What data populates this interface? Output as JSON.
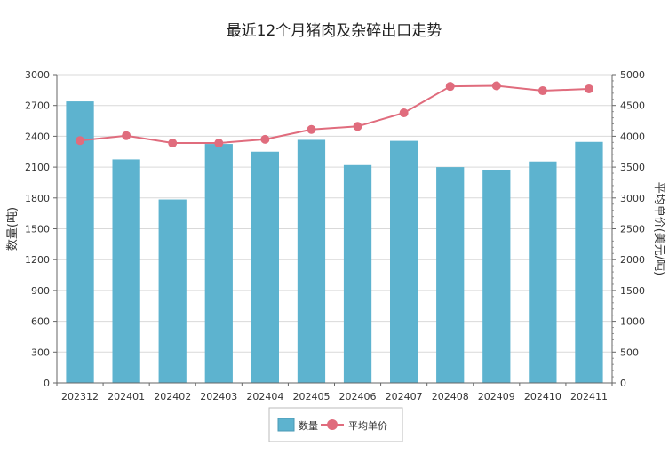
{
  "chart_data": {
    "type": "bar",
    "title": "最近12个月猪肉及杂碎出口走势",
    "categories": [
      "202312",
      "202401",
      "202402",
      "202403",
      "202404",
      "202405",
      "202406",
      "202407",
      "202408",
      "202409",
      "202410",
      "202411"
    ],
    "series": [
      {
        "name": "数量",
        "type": "bar",
        "axis": "left",
        "color": "#5db3cf",
        "values": [
          2740,
          2175,
          1785,
          2325,
          2250,
          2365,
          2120,
          2355,
          2100,
          2075,
          2155,
          2345
        ]
      },
      {
        "name": "平均单价",
        "type": "line",
        "axis": "right",
        "color": "#e06c7d",
        "values": [
          3930,
          4010,
          3890,
          3890,
          3950,
          4110,
          4160,
          4380,
          4810,
          4820,
          4740,
          4770
        ]
      }
    ],
    "ylabel": "数量(吨)",
    "y2label": "平均单价(美元/吨)",
    "ylim": [
      0,
      3000
    ],
    "y2lim": [
      0,
      5000
    ],
    "yticks": [
      0,
      300,
      600,
      900,
      1200,
      1500,
      1800,
      2100,
      2400,
      2700,
      3000
    ],
    "y2ticks": [
      0,
      500,
      1000,
      1500,
      2000,
      2500,
      3000,
      3500,
      4000,
      4500,
      5000
    ],
    "grid": true,
    "legend": "bottom-center"
  }
}
